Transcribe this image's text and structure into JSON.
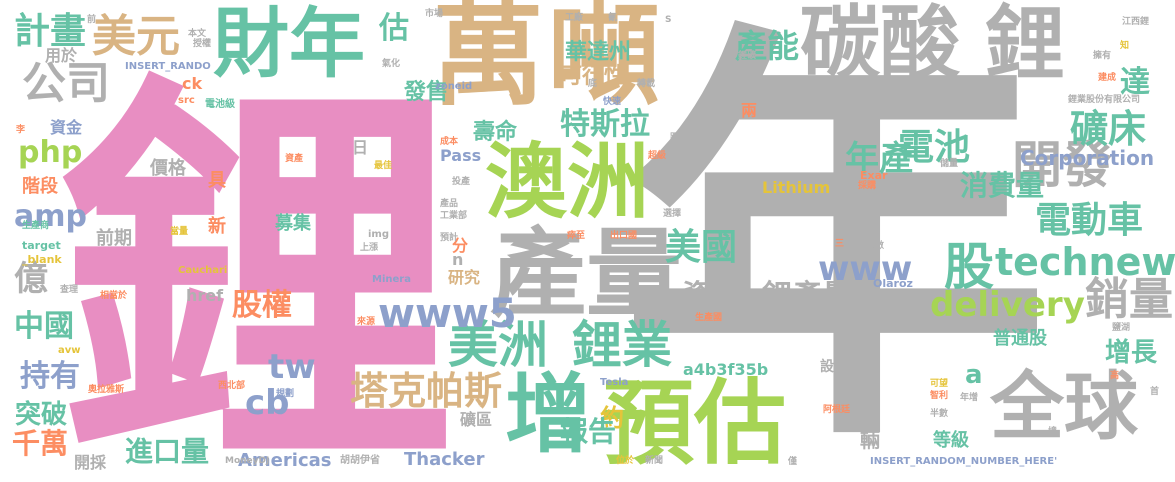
{
  "palette": {
    "pink": "#e88ec2",
    "gray": "#b0b0b0",
    "tan": "#d9b483",
    "green": "#a6d454",
    "teal": "#66c2a5",
    "orange": "#fc8d62",
    "blue": "#8da0cb",
    "yellow": "#e5c43a"
  },
  "words": [
    {
      "id": "w-li-big",
      "text": "鋰",
      "color": "pink"
    },
    {
      "id": "w-nian-big",
      "text": "年",
      "color": "gray"
    },
    {
      "id": "w-wan",
      "text": "萬",
      "color": "tan"
    },
    {
      "id": "w-dun",
      "text": "噸",
      "color": "tan"
    },
    {
      "id": "w-tansuan",
      "text": "碳酸",
      "color": "gray"
    },
    {
      "id": "w-li-top",
      "text": "鋰",
      "color": "gray"
    },
    {
      "id": "w-cainian",
      "text": "財年",
      "color": "teal"
    },
    {
      "id": "w-meiyuan",
      "text": "美元",
      "color": "tan"
    },
    {
      "id": "w-gongsi",
      "text": "公司",
      "color": "gray"
    },
    {
      "id": "w-jihua",
      "text": "計畫",
      "color": "teal"
    },
    {
      "id": "w-aozhou",
      "text": "澳洲",
      "color": "green"
    },
    {
      "id": "w-chanliang",
      "text": "產量",
      "color": "gray"
    },
    {
      "id": "w-yugu",
      "text": "預估",
      "color": "green"
    },
    {
      "id": "w-zeng",
      "text": "增",
      "color": "teal"
    },
    {
      "id": "w-quanqiu",
      "text": "全球",
      "color": "gray"
    },
    {
      "id": "w-meizhou",
      "text": "美洲",
      "color": "teal"
    },
    {
      "id": "w-liye",
      "text": "鋰業",
      "color": "teal"
    },
    {
      "id": "w-kaifa",
      "text": "開發",
      "color": "gray"
    },
    {
      "id": "w-kuangchuang",
      "text": "礦床",
      "color": "teal"
    },
    {
      "id": "w-dianchi",
      "text": "電池",
      "color": "teal"
    },
    {
      "id": "w-niancahn",
      "text": "年產",
      "color": "teal"
    },
    {
      "id": "w-xiaofeiliang",
      "text": "消費量",
      "color": "teal"
    },
    {
      "id": "w-diandongche",
      "text": "電動車",
      "color": "teal"
    },
    {
      "id": "w-meiguo",
      "text": "美國",
      "color": "teal"
    },
    {
      "id": "w-gu",
      "text": "股",
      "color": "teal"
    },
    {
      "id": "w-technews",
      "text": "technews",
      "color": "teal"
    },
    {
      "id": "w-www",
      "text": "www",
      "color": "blue"
    },
    {
      "id": "w-delivery",
      "text": "delivery",
      "color": "green"
    },
    {
      "id": "w-xiaoliang",
      "text": "銷量",
      "color": "gray"
    },
    {
      "id": "w-lichanliang",
      "text": "鋰產量",
      "color": "gray"
    },
    {
      "id": "w-ziyuan",
      "text": "資源",
      "color": "gray"
    },
    {
      "id": "w-www5",
      "text": "www5",
      "color": "blue"
    },
    {
      "id": "w-guquan",
      "text": "股權",
      "color": "orange"
    },
    {
      "id": "w-takepasi",
      "text": "塔克帕斯",
      "color": "tan"
    },
    {
      "id": "w-tesila",
      "text": "特斯拉",
      "color": "teal"
    },
    {
      "id": "w-huadazhou",
      "text": "華達州",
      "color": "teal"
    },
    {
      "id": "w-kexingxing",
      "text": "可行性",
      "color": "tan"
    },
    {
      "id": "w-shouming",
      "text": "壽命",
      "color": "teal"
    },
    {
      "id": "w-channeng",
      "text": "產能",
      "color": "teal"
    },
    {
      "id": "w-fashou",
      "text": "發售",
      "color": "teal"
    },
    {
      "id": "w-gu2",
      "text": "估",
      "color": "teal"
    },
    {
      "id": "w-da",
      "text": "達",
      "color": "teal"
    },
    {
      "id": "w-corporation",
      "text": "Corporation",
      "color": "blue"
    },
    {
      "id": "w-php",
      "text": "php",
      "color": "green"
    },
    {
      "id": "w-amp",
      "text": "amp",
      "color": "blue"
    },
    {
      "id": "w-yi",
      "text": "億",
      "color": "gray"
    },
    {
      "id": "w-zhongguo",
      "text": "中國",
      "color": "teal"
    },
    {
      "id": "w-chiyou",
      "text": "持有",
      "color": "blue"
    },
    {
      "id": "w-tupo",
      "text": "突破",
      "color": "teal"
    },
    {
      "id": "w-qianwan",
      "text": "千萬",
      "color": "orange"
    },
    {
      "id": "w-kaicai",
      "text": "開採",
      "color": "gray"
    },
    {
      "id": "w-jinkouliang",
      "text": "進口量",
      "color": "teal"
    },
    {
      "id": "w-americas",
      "text": "Americas",
      "color": "blue"
    },
    {
      "id": "w-thacker",
      "text": "Thacker",
      "color": "blue"
    },
    {
      "id": "w-cb",
      "text": "cb",
      "color": "blue"
    },
    {
      "id": "w-tw",
      "text": "tw",
      "color": "blue"
    },
    {
      "id": "w-yue",
      "text": "約",
      "color": "yellow"
    },
    {
      "id": "w-baogao",
      "text": "報告",
      "color": "teal"
    },
    {
      "id": "w-a",
      "text": "a",
      "color": "teal"
    },
    {
      "id": "w-zengzhang",
      "text": "增長",
      "color": "teal"
    },
    {
      "id": "w-putonggu",
      "text": "普通股",
      "color": "teal"
    },
    {
      "id": "w-a4b3",
      "text": "a4b3f35b",
      "color": "teal"
    },
    {
      "id": "w-dengji",
      "text": "等級",
      "color": "teal"
    },
    {
      "id": "w-liang",
      "text": "輛",
      "color": "gray"
    },
    {
      "id": "w-lithium",
      "text": "Lithium",
      "color": "yellow"
    },
    {
      "id": "w-jiage",
      "text": "價格",
      "color": "gray"
    },
    {
      "id": "w-ju",
      "text": "具",
      "color": "orange"
    },
    {
      "id": "w-xin",
      "text": "新",
      "color": "orange"
    },
    {
      "id": "w-qianqi",
      "text": "前期",
      "color": "gray"
    },
    {
      "id": "w-mují",
      "text": "募集",
      "color": "teal"
    },
    {
      "id": "w-zijin",
      "text": "資金",
      "color": "blue"
    },
    {
      "id": "w-jieduan",
      "text": "階段",
      "color": "orange"
    },
    {
      "id": "w-yongyu",
      "text": "用於",
      "color": "gray"
    },
    {
      "id": "w-pass",
      "text": "Pass",
      "color": "blue"
    },
    {
      "id": "w-yanjiu",
      "text": "研究",
      "color": "tan"
    },
    {
      "id": "w-href",
      "text": "href",
      "color": "gray"
    },
    {
      "id": "w-ck",
      "text": "ck",
      "color": "orange"
    },
    {
      "id": "w-ri",
      "text": "日",
      "color": "gray"
    },
    {
      "id": "w-fen",
      "text": "分",
      "color": "orange"
    },
    {
      "id": "w-n",
      "text": "n",
      "color": "gray"
    },
    {
      "id": "w-liang2",
      "text": "兩",
      "color": "orange"
    },
    {
      "id": "w-kuangqu",
      "text": "礦區",
      "color": "gray"
    },
    {
      "id": "w-sheji",
      "text": "設計",
      "color": "gray"
    },
    {
      "id": "w-insert1",
      "text": "INSERT_RANDO",
      "color": "blue"
    },
    {
      "id": "w-insert2",
      "text": "INSERT_RANDOM_NUMBER_HERE'",
      "color": "blue"
    },
    {
      "id": "w-zoneid",
      "text": "zoneid",
      "color": "blue"
    },
    {
      "id": "w-exar",
      "text": "Exar",
      "color": "orange"
    },
    {
      "id": "w-olaroz",
      "text": "Olaroz",
      "color": "blue"
    },
    {
      "id": "w-minera",
      "text": "Minera",
      "color": "blue"
    },
    {
      "id": "w-cauchari",
      "text": "Cauchari",
      "color": "yellow"
    },
    {
      "id": "w-moneydj",
      "text": "MoneyDJ",
      "color": "gray"
    },
    {
      "id": "w-tesla",
      "text": "Tesla",
      "color": "blue"
    },
    {
      "id": "w-target",
      "text": "target",
      "color": "teal"
    },
    {
      "id": "w-blank",
      "text": "_blank",
      "color": "yellow"
    },
    {
      "id": "w-img",
      "text": "img",
      "color": "gray"
    },
    {
      "id": "w-src",
      "text": "src",
      "color": "orange"
    },
    {
      "id": "w-avw",
      "text": "avw",
      "color": "yellow"
    },
    {
      "id": "w-dianchiji",
      "text": "電池級",
      "color": "teal"
    },
    {
      "id": "w-chengben",
      "text": "成本",
      "color": "orange"
    },
    {
      "id": "w-touchan",
      "text": "投產",
      "color": "gray"
    },
    {
      "id": "w-chanpin",
      "text": "產品",
      "color": "gray"
    },
    {
      "id": "w-gongyebu",
      "text": "工業部",
      "color": "gray"
    },
    {
      "id": "w-yuji",
      "text": "預計",
      "color": "gray"
    },
    {
      "id": "w-shangzhang",
      "text": "上漲",
      "color": "gray"
    },
    {
      "id": "w-chakan",
      "text": "查理",
      "color": "gray"
    },
    {
      "id": "w-xiangdangyu",
      "text": "相當於",
      "color": "orange"
    },
    {
      "id": "w-laiyuan",
      "text": "來源",
      "color": "orange"
    },
    {
      "id": "w-xibeibu",
      "text": "西北部",
      "color": "orange"
    },
    {
      "id": "w-aolaya",
      "text": "奧拉雅斯",
      "color": "orange"
    },
    {
      "id": "w-huhuyisheng",
      "text": "胡胡伊省",
      "color": "gray"
    },
    {
      "id": "w-guihua",
      "text": "規劃",
      "color": "blue"
    },
    {
      "id": "w-zichan",
      "text": "資產",
      "color": "orange"
    },
    {
      "id": "w-zuijia",
      "text": "最佳",
      "color": "yellow"
    },
    {
      "id": "w-dangliang",
      "text": "當量",
      "color": "yellow"
    },
    {
      "id": "w-shengchanshang",
      "text": "生產商",
      "color": "teal"
    },
    {
      "id": "w-shichang",
      "text": "市場",
      "color": "gray"
    },
    {
      "id": "w-qiantop",
      "text": "前",
      "color": "gray"
    },
    {
      "id": "w-benwen",
      "text": "本文",
      "color": "gray"
    },
    {
      "id": "w-shouquan",
      "text": "授權",
      "color": "gray"
    },
    {
      "id": "w-qihua",
      "text": "氣化",
      "color": "gray"
    },
    {
      "id": "w-gongchang",
      "text": "工廠",
      "color": "gray"
    },
    {
      "id": "w-qing",
      "text": "氰",
      "color": "gray"
    },
    {
      "id": "w-s",
      "text": "S",
      "color": "gray"
    },
    {
      "id": "w-lixi",
      "text": "鋰礦",
      "color": "gray"
    },
    {
      "id": "w-qianwan2",
      "text": "建成",
      "color": "orange"
    },
    {
      "id": "w-yongyou",
      "text": "擁有",
      "color": "gray"
    },
    {
      "id": "w-jiangxi",
      "text": "江西鋰",
      "color": "gray"
    },
    {
      "id": "w-liye-co",
      "text": "鋰業股份有限公司",
      "color": "gray"
    },
    {
      "id": "w-di",
      "text": "底",
      "color": "gray"
    },
    {
      "id": "w-kuaisu",
      "text": "快速",
      "color": "blue"
    },
    {
      "id": "w-zhuanzai",
      "text": "轉載",
      "color": "gray"
    },
    {
      "id": "w-juli",
      "text": "距離",
      "color": "gray"
    },
    {
      "id": "w-chaoji",
      "text": "超級",
      "color": "orange"
    },
    {
      "id": "w-caigou",
      "text": "採購",
      "color": "orange"
    },
    {
      "id": "w-yingli",
      "text": "英里",
      "color": "gray"
    },
    {
      "id": "w-chuliang",
      "text": "儲量",
      "color": "gray"
    },
    {
      "id": "w-xuanze",
      "text": "選擇",
      "color": "gray"
    },
    {
      "id": "w-chukouguo",
      "text": "出口國",
      "color": "orange"
    },
    {
      "id": "w-chuwang",
      "text": "瘁至",
      "color": "orange"
    },
    {
      "id": "w-san",
      "text": "三",
      "color": "orange"
    },
    {
      "id": "w-weishu",
      "text": "位數",
      "color": "gray"
    },
    {
      "id": "w-shengchanguo",
      "text": "生產國",
      "color": "orange"
    },
    {
      "id": "w-yanhu",
      "text": "鹽湖",
      "color": "gray"
    },
    {
      "id": "w-agenting",
      "text": "阿根廷",
      "color": "orange"
    },
    {
      "id": "w-banshu",
      "text": "半數",
      "color": "gray"
    },
    {
      "id": "w-zhili",
      "text": "智利",
      "color": "orange"
    },
    {
      "id": "w-nianzeng",
      "text": "年增",
      "color": "gray"
    },
    {
      "id": "w-kewang",
      "text": "可望",
      "color": "yellow"
    },
    {
      "id": "w-jin",
      "text": "僅",
      "color": "gray"
    },
    {
      "id": "w-weiyu",
      "text": "位於",
      "color": "yellow"
    },
    {
      "id": "w-xinwen",
      "text": "新聞",
      "color": "gray"
    },
    {
      "id": "w-jing",
      "text": "境",
      "color": "gray"
    },
    {
      "id": "w-gao",
      "text": "高",
      "color": "orange"
    },
    {
      "id": "w-shou",
      "text": "首",
      "color": "gray"
    },
    {
      "id": "w-zhi",
      "text": "知",
      "color": "yellow"
    },
    {
      "id": "w-li-small",
      "text": "李",
      "color": "orange"
    }
  ]
}
